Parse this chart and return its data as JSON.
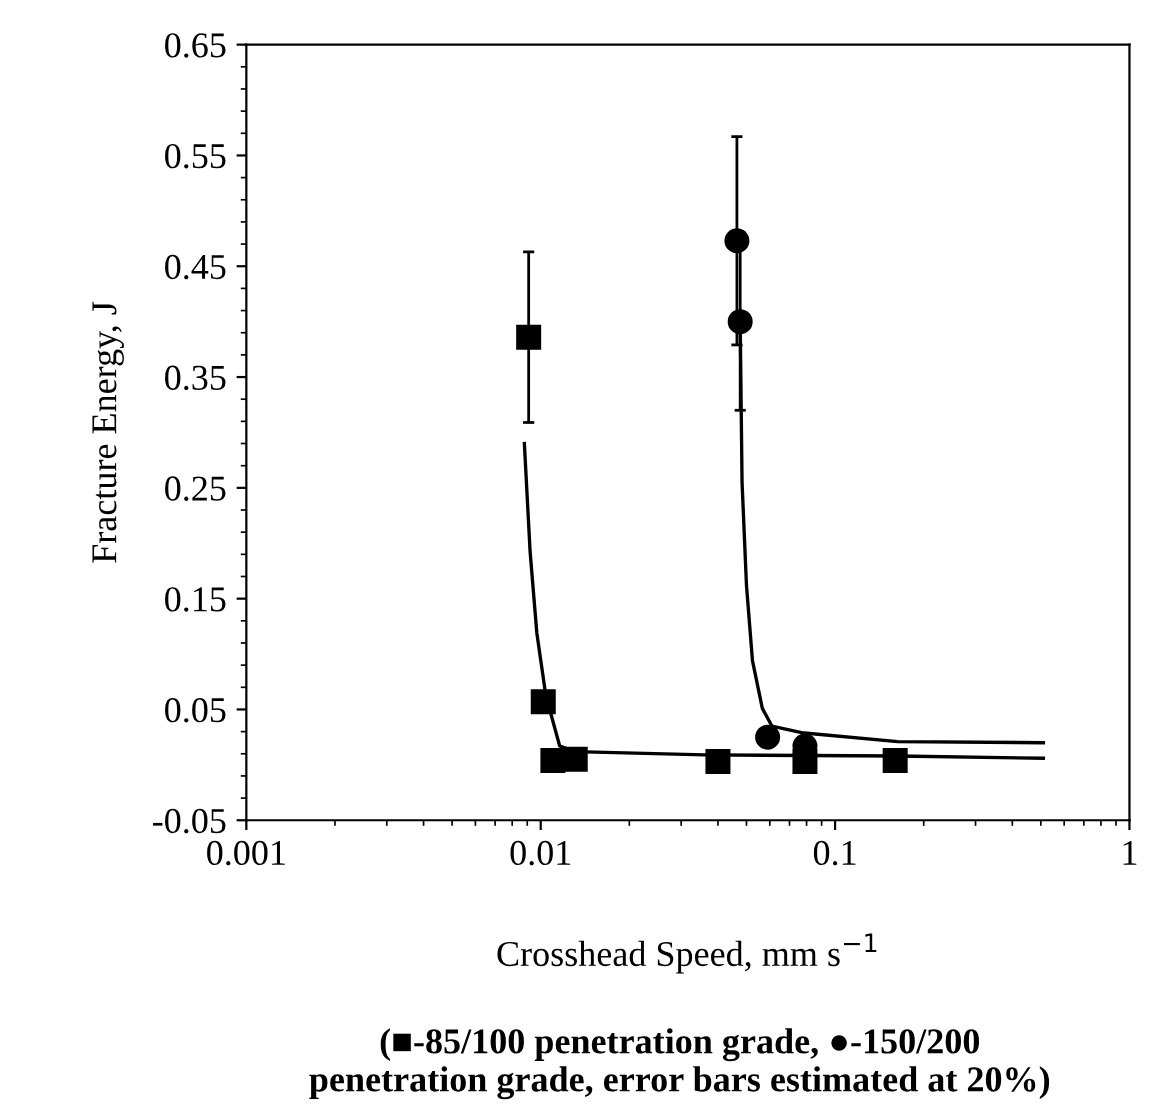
{
  "chart_data": {
    "type": "scatter",
    "xlabel": "Crosshead Speed, mm s$^{−1}$",
    "ylabel": "Fracture Energy, J",
    "annotations": [
      "(■-85/100 penetration grade, ●-150/200\npenetration grade, error bars estimated at 20%)"
    ],
    "log": "x",
    "xlim": [
      0.001,
      1
    ],
    "xticks": [
      0.001,
      0.01,
      0.1,
      1
    ],
    "ylim": [
      -0.05,
      0.65
    ],
    "yticks": [
      {
        "value": -0.05,
        "label": "-0.05"
      },
      0.05,
      0.15,
      0.25,
      0.35,
      0.45,
      0.55,
      0.65
    ],
    "grid": false,
    "legend": false,
    "series": [
      {
        "marker": "square",
        "color": "#000000",
        "x": [
          0.0091,
          0.0102,
          0.011,
          0.0131,
          0.04,
          0.079,
          0.16
        ],
        "values": [
          0.386,
          0.057,
          0.004,
          0.005,
          0.003,
          0.003,
          0.004
        ],
        "errors": [
          0.077,
          null,
          null,
          null,
          null,
          null,
          null
        ]
      },
      {
        "marker": "circle",
        "color": "#000000",
        "x": [
          0.0464,
          0.0476,
          0.059,
          0.079
        ],
        "values": [
          0.473,
          0.4,
          0.025,
          0.017
        ],
        "errors": [
          0.094,
          0.08,
          null,
          null
        ]
      },
      {
        "type": "line",
        "marker": "none",
        "color": "#000000",
        "x": [
          0.0088,
          0.0092,
          0.0097,
          0.0104,
          0.0116,
          0.0131,
          0.036,
          0.163,
          0.51
        ],
        "values": [
          0.29,
          0.193,
          0.119,
          0.063,
          0.017,
          0.012,
          0.009,
          0.008,
          0.006
        ]
      },
      {
        "type": "line",
        "marker": "none",
        "color": "#000000",
        "x": [
          0.0476,
          0.0483,
          0.05,
          0.0524,
          0.0566,
          0.061,
          0.077,
          0.163,
          0.51
        ],
        "values": [
          0.4,
          0.255,
          0.162,
          0.094,
          0.051,
          0.035,
          0.029,
          0.021,
          0.02
        ]
      }
    ]
  }
}
